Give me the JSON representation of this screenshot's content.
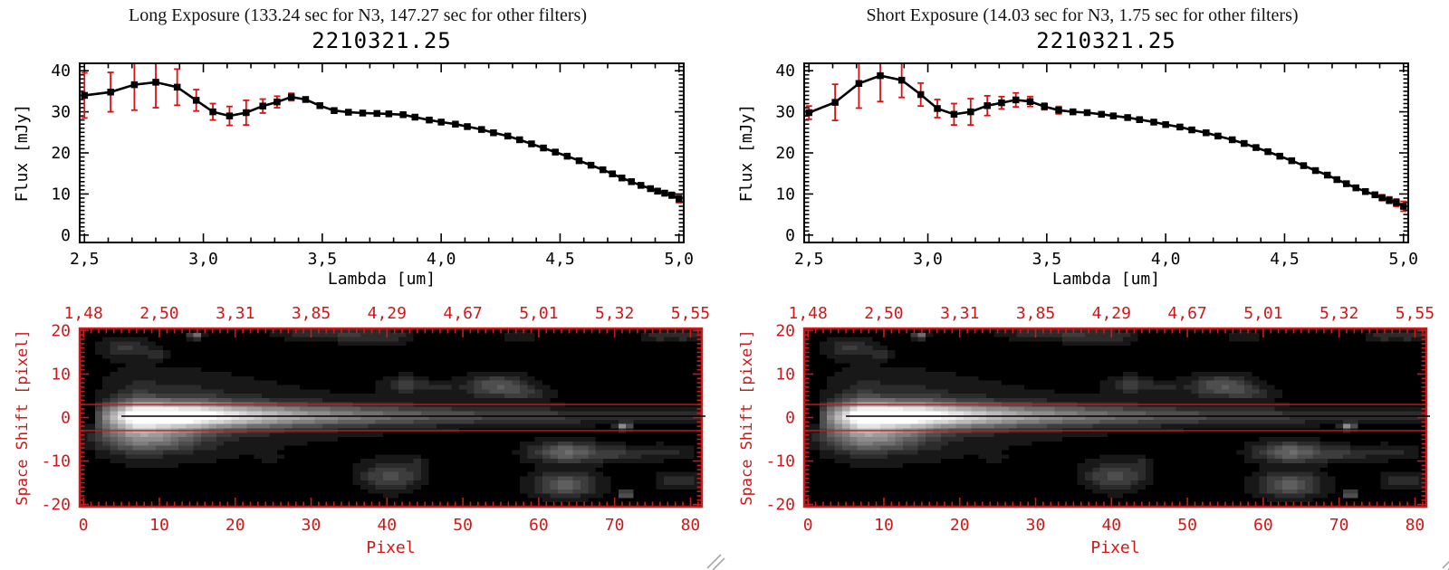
{
  "colors": {
    "background": "#ffffff",
    "axis_black": "#000000",
    "accent_red": "#d01818",
    "error_red": "#dd1111",
    "grip_gray": "#a9a9a9",
    "image_background": "#000000"
  },
  "panels": [
    {
      "header": "Long Exposure (133.24 sec for N3, 147.27 sec for other filters)",
      "plot_title": "2210321.25"
    },
    {
      "header": "Short Exposure (14.03 sec for N3, 1.75 sec for other filters)",
      "plot_title": "2210321.25"
    }
  ],
  "chart_data": [
    {
      "type": "line",
      "panel": "Long Exposure",
      "title": "2210321.25",
      "xlabel": "Lambda [um]",
      "ylabel": "Flux [mJy]",
      "xlim": [
        2.5,
        5.0
      ],
      "ylim": [
        0,
        40
      ],
      "x_tick_values": [
        2.5,
        3.0,
        3.5,
        4.0,
        4.5,
        5.0
      ],
      "x_tick_labels": [
        "2,5",
        "3,0",
        "3,5",
        "4,0",
        "4,5",
        "5,0"
      ],
      "y_tick_values": [
        0,
        10,
        20,
        30,
        40
      ],
      "y_tick_labels": [
        "0",
        "10",
        "20",
        "30",
        "40"
      ],
      "marker": "filled-square",
      "x": [
        2.5,
        2.61,
        2.71,
        2.8,
        2.89,
        2.97,
        3.04,
        3.11,
        3.18,
        3.25,
        3.31,
        3.37,
        3.43,
        3.49,
        3.55,
        3.61,
        3.67,
        3.73,
        3.78,
        3.84,
        3.89,
        3.95,
        4.0,
        4.06,
        4.11,
        4.17,
        4.22,
        4.28,
        4.33,
        4.38,
        4.43,
        4.48,
        4.53,
        4.58,
        4.63,
        4.68,
        4.72,
        4.76,
        4.8,
        4.84,
        4.88,
        4.91,
        4.94,
        4.97,
        5.0
      ],
      "y": [
        34.0,
        34.8,
        36.6,
        37.2,
        36.0,
        32.8,
        30.0,
        29.0,
        29.8,
        31.4,
        32.4,
        33.6,
        33.0,
        31.5,
        30.3,
        29.9,
        29.7,
        29.6,
        29.5,
        29.3,
        28.7,
        28.0,
        27.5,
        27.0,
        26.4,
        25.7,
        24.9,
        24.1,
        23.2,
        22.2,
        21.2,
        20.2,
        19.2,
        18.1,
        17.0,
        15.9,
        14.9,
        13.9,
        13.0,
        12.1,
        11.3,
        10.7,
        10.2,
        9.7,
        8.8
      ],
      "yerr": [
        5.5,
        4.8,
        6.2,
        6.2,
        4.4,
        2.6,
        2.0,
        2.3,
        3.0,
        1.7,
        1.4,
        0.9,
        0.5,
        0.6,
        0.5,
        0.5,
        0.4,
        0.4,
        0.4,
        0.4,
        0.4,
        0.4,
        0.4,
        0.5,
        0.5,
        0.5,
        0.5,
        0.5,
        0.5,
        0.5,
        0.5,
        0.5,
        0.5,
        0.5,
        0.5,
        0.5,
        0.5,
        0.5,
        0.5,
        0.5,
        0.5,
        0.6,
        0.6,
        0.7,
        0.9
      ]
    },
    {
      "type": "line",
      "panel": "Short Exposure",
      "title": "2210321.25",
      "xlabel": "Lambda [um]",
      "ylabel": "Flux [mJy]",
      "xlim": [
        2.5,
        5.0
      ],
      "ylim": [
        0,
        40
      ],
      "x_tick_values": [
        2.5,
        3.0,
        3.5,
        4.0,
        4.5,
        5.0
      ],
      "x_tick_labels": [
        "2,5",
        "3,0",
        "3,5",
        "4,0",
        "4,5",
        "5,0"
      ],
      "y_tick_values": [
        0,
        10,
        20,
        30,
        40
      ],
      "y_tick_labels": [
        "0",
        "10",
        "20",
        "30",
        "40"
      ],
      "marker": "filled-square",
      "x": [
        2.5,
        2.61,
        2.71,
        2.8,
        2.89,
        2.97,
        3.04,
        3.11,
        3.18,
        3.25,
        3.31,
        3.37,
        3.43,
        3.49,
        3.55,
        3.61,
        3.67,
        3.73,
        3.78,
        3.84,
        3.89,
        3.95,
        4.0,
        4.06,
        4.11,
        4.17,
        4.22,
        4.28,
        4.33,
        4.38,
        4.43,
        4.48,
        4.53,
        4.58,
        4.63,
        4.68,
        4.72,
        4.76,
        4.8,
        4.84,
        4.88,
        4.91,
        4.94,
        4.97,
        5.0
      ],
      "y": [
        29.8,
        32.3,
        36.9,
        38.8,
        37.7,
        34.2,
        30.8,
        29.4,
        30.0,
        31.5,
        32.2,
        32.9,
        32.5,
        31.3,
        30.4,
        30.0,
        29.8,
        29.4,
        29.0,
        28.6,
        28.1,
        27.5,
        26.9,
        26.3,
        25.6,
        24.9,
        24.1,
        23.2,
        22.3,
        21.3,
        20.3,
        19.2,
        18.1,
        16.9,
        15.7,
        14.6,
        13.5,
        12.5,
        11.5,
        10.6,
        9.8,
        9.1,
        8.5,
        7.9,
        7.0
      ],
      "yerr": [
        1.6,
        4.4,
        6.0,
        6.3,
        4.2,
        2.8,
        2.2,
        2.6,
        3.2,
        2.4,
        1.5,
        1.7,
        1.2,
        0.8,
        0.9,
        0.6,
        0.5,
        0.5,
        0.5,
        0.5,
        0.5,
        0.5,
        0.5,
        0.5,
        0.5,
        0.5,
        0.5,
        0.5,
        0.5,
        0.5,
        0.5,
        0.5,
        0.5,
        0.5,
        0.5,
        0.5,
        0.5,
        0.5,
        0.6,
        0.6,
        0.6,
        0.7,
        0.8,
        0.9,
        1.2
      ]
    },
    {
      "type": "heatmap",
      "panel": "Long Exposure",
      "xlabel": "Pixel",
      "ylabel": "Space Shift [pixel]",
      "xlim": [
        0,
        81
      ],
      "ylim": [
        -20,
        20
      ],
      "x_tick_values": [
        0,
        10,
        20,
        30,
        40,
        50,
        60,
        70,
        80
      ],
      "x_tick_labels": [
        "0",
        "10",
        "20",
        "30",
        "40",
        "50",
        "60",
        "70",
        "80"
      ],
      "y_tick_values": [
        20,
        10,
        0,
        -10,
        -20
      ],
      "y_tick_labels": [
        "20",
        "10",
        "0",
        "-10",
        "-20"
      ],
      "top_axis_values": [
        1.48,
        2.5,
        3.31,
        3.85,
        4.29,
        4.67,
        5.01,
        5.32,
        5.55
      ],
      "top_axis_labels": [
        "1,48",
        "2,50",
        "3,31",
        "3,85",
        "4,29",
        "4,67",
        "5,01",
        "5,32",
        "5,55"
      ],
      "extraction_lines_y": [
        3,
        -3
      ],
      "center_line_y": 0.3,
      "streak_model": {
        "y_center": 0.4,
        "x_on": 2,
        "x_core_start": 7,
        "x_core_end": 14,
        "decay_scale": 20,
        "floor": 0.08,
        "sigma_y_start": 1.9,
        "sigma_y_end": 1.15,
        "halo_amp": 0.3,
        "halo_decay": 35,
        "halo_sigma_mult": 3
      },
      "blob_format": "[x, y, amplitude, sigma_x, sigma_y]",
      "blobs": [
        [
          8,
          -4.5,
          0.36,
          4.5,
          2.2
        ],
        [
          5.5,
          16,
          0.16,
          2.2,
          1.6
        ],
        [
          9.5,
          14.5,
          0.1,
          1.0,
          0.9
        ],
        [
          14.7,
          18.8,
          0.42,
          0.6,
          0.6
        ],
        [
          29,
          19.5,
          0.13,
          2.5,
          1.0
        ],
        [
          35,
          19.2,
          0.16,
          2.5,
          1.3
        ],
        [
          40.5,
          18.8,
          0.14,
          2.0,
          1.2
        ],
        [
          42.5,
          7.6,
          0.2,
          1.8,
          1.3
        ],
        [
          47,
          6.8,
          0.1,
          1.5,
          1.0
        ],
        [
          54.5,
          7.2,
          0.28,
          2.8,
          1.8
        ],
        [
          59,
          5.5,
          0.12,
          2.0,
          1.2
        ],
        [
          24.5,
          -9.5,
          0.1,
          0.8,
          0.8
        ],
        [
          40.5,
          -13.5,
          0.26,
          2.6,
          2.2
        ],
        [
          44,
          -10.5,
          0.12,
          0.8,
          0.8
        ],
        [
          63.5,
          -8,
          0.34,
          3.0,
          1.7
        ],
        [
          70,
          -8.3,
          0.15,
          2.5,
          1.2
        ],
        [
          76.5,
          -8,
          0.12,
          2.5,
          1.2
        ],
        [
          63.5,
          -15.5,
          0.33,
          2.8,
          1.9
        ],
        [
          71.5,
          -17.6,
          0.5,
          0.55,
          0.55
        ],
        [
          71.2,
          -2.1,
          0.52,
          0.6,
          0.55
        ],
        [
          78.5,
          -14.5,
          0.14,
          2.0,
          1.3
        ],
        [
          79.5,
          19,
          0.16,
          1.8,
          1.0
        ],
        [
          75.5,
          18.6,
          0.12,
          1.2,
          0.8
        ],
        [
          57.5,
          18.8,
          0.1,
          1.5,
          0.9
        ]
      ]
    },
    {
      "type": "heatmap",
      "panel": "Short Exposure",
      "xlabel": "Pixel",
      "ylabel": "Space Shift [pixel]",
      "xlim": [
        0,
        81
      ],
      "ylim": [
        -20,
        20
      ],
      "x_tick_values": [
        0,
        10,
        20,
        30,
        40,
        50,
        60,
        70,
        80
      ],
      "x_tick_labels": [
        "0",
        "10",
        "20",
        "30",
        "40",
        "50",
        "60",
        "70",
        "80"
      ],
      "y_tick_values": [
        20,
        10,
        0,
        -10,
        -20
      ],
      "y_tick_labels": [
        "20",
        "10",
        "0",
        "-10",
        "-20"
      ],
      "top_axis_values": [
        1.48,
        2.5,
        3.31,
        3.85,
        4.29,
        4.67,
        5.01,
        5.32,
        5.55
      ],
      "top_axis_labels": [
        "1,48",
        "2,50",
        "3,31",
        "3,85",
        "4,29",
        "4,67",
        "5,01",
        "5,32",
        "5,55"
      ],
      "extraction_lines_y": [
        3,
        -3
      ],
      "center_line_y": 0.3,
      "streak_model": {
        "y_center": 0.4,
        "x_on": 2,
        "x_core_start": 7,
        "x_core_end": 14,
        "decay_scale": 20,
        "floor": 0.08,
        "sigma_y_start": 1.9,
        "sigma_y_end": 1.15,
        "halo_amp": 0.3,
        "halo_decay": 35,
        "halo_sigma_mult": 3
      },
      "blob_format": "[x, y, amplitude, sigma_x, sigma_y]",
      "blobs": [
        [
          8,
          -4.5,
          0.36,
          4.5,
          2.2
        ],
        [
          5.5,
          16,
          0.16,
          2.2,
          1.6
        ],
        [
          9.5,
          14.5,
          0.1,
          1.0,
          0.9
        ],
        [
          14.7,
          18.8,
          0.42,
          0.6,
          0.6
        ],
        [
          29,
          19.5,
          0.13,
          2.5,
          1.0
        ],
        [
          35,
          19.2,
          0.16,
          2.5,
          1.3
        ],
        [
          40.5,
          18.8,
          0.14,
          2.0,
          1.2
        ],
        [
          42.5,
          7.6,
          0.2,
          1.8,
          1.3
        ],
        [
          47,
          6.8,
          0.1,
          1.5,
          1.0
        ],
        [
          54.5,
          7.2,
          0.28,
          2.8,
          1.8
        ],
        [
          59,
          5.5,
          0.12,
          2.0,
          1.2
        ],
        [
          24.5,
          -9.5,
          0.1,
          0.8,
          0.8
        ],
        [
          40.5,
          -13.5,
          0.26,
          2.6,
          2.2
        ],
        [
          44,
          -10.5,
          0.12,
          0.8,
          0.8
        ],
        [
          63.5,
          -8,
          0.34,
          3.0,
          1.7
        ],
        [
          70,
          -8.3,
          0.15,
          2.5,
          1.2
        ],
        [
          76.5,
          -8,
          0.12,
          2.5,
          1.2
        ],
        [
          63.5,
          -15.5,
          0.33,
          2.8,
          1.9
        ],
        [
          71.5,
          -17.6,
          0.5,
          0.55,
          0.55
        ],
        [
          71.2,
          -2.1,
          0.52,
          0.6,
          0.55
        ],
        [
          78.5,
          -14.5,
          0.14,
          2.0,
          1.3
        ],
        [
          79.5,
          19,
          0.16,
          1.8,
          1.0
        ],
        [
          75.5,
          18.6,
          0.12,
          1.2,
          0.8
        ],
        [
          57.5,
          18.8,
          0.1,
          1.5,
          0.9
        ]
      ]
    }
  ]
}
